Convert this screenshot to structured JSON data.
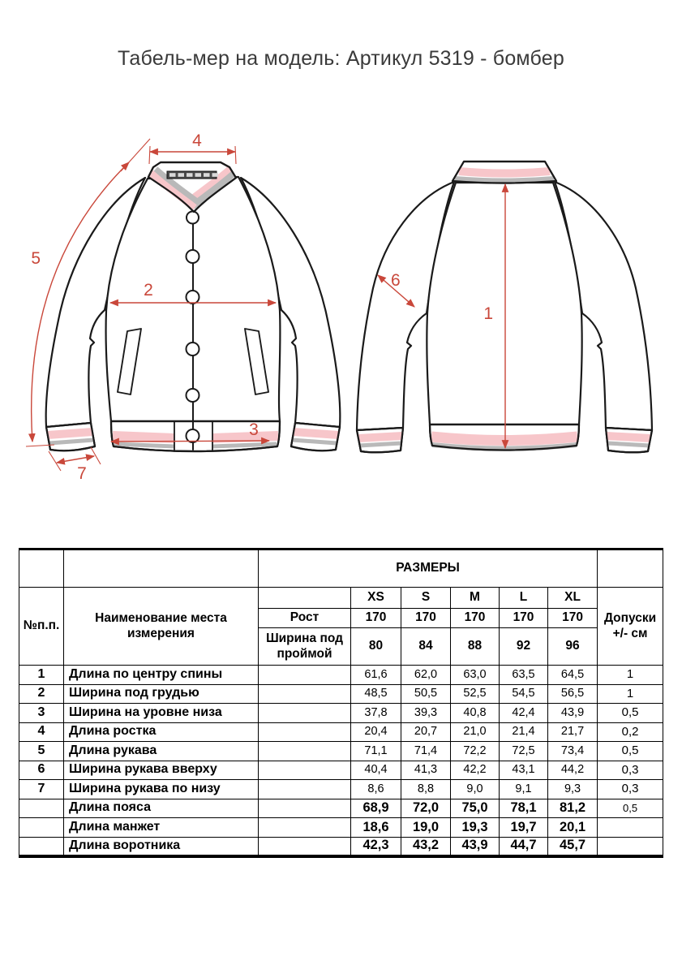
{
  "title": "Табель-мер на модель: Артикул 5319 - бомбер",
  "drawing": {
    "labels": {
      "m1": "1",
      "m2": "2",
      "m3": "3",
      "m4": "4",
      "m5": "5",
      "m6": "6",
      "m7": "7"
    },
    "colors": {
      "accent_red": "#c9473a",
      "rib_pink": "#f7c6ca",
      "rib_gray": "#b9b9b9",
      "outline_black": "#1a1a1a"
    }
  },
  "table": {
    "header": {
      "col_num": "№п.п.",
      "col_name": "Наименование места измерения",
      "sizes_title": "РАЗМЕРЫ",
      "size_labels": [
        "XS",
        "S",
        "M",
        "L",
        "XL"
      ],
      "rost_label": "Рост",
      "rost_values": [
        "170",
        "170",
        "170",
        "170",
        "170"
      ],
      "shirina_label": "Ширина под проймой",
      "shirina_values": [
        "80",
        "84",
        "88",
        "92",
        "96"
      ],
      "tolerance_label": "Допуски +/- см"
    },
    "rows": [
      {
        "num": "1",
        "name": "Длина по центру спины",
        "values": [
          "61,6",
          "62,0",
          "63,0",
          "63,5",
          "64,5"
        ],
        "tolerance": "1",
        "bold": false,
        "tolerance_small": false
      },
      {
        "num": "2",
        "name": "Ширина под грудью",
        "values": [
          "48,5",
          "50,5",
          "52,5",
          "54,5",
          "56,5"
        ],
        "tolerance": "1",
        "bold": false,
        "tolerance_small": false
      },
      {
        "num": "3",
        "name": "Ширина на уровне низа",
        "values": [
          "37,8",
          "39,3",
          "40,8",
          "42,4",
          "43,9"
        ],
        "tolerance": "0,5",
        "bold": false,
        "tolerance_small": false
      },
      {
        "num": "4",
        "name": "Длина ростка",
        "values": [
          "20,4",
          "20,7",
          "21,0",
          "21,4",
          "21,7"
        ],
        "tolerance": "0,2",
        "bold": false,
        "tolerance_small": false
      },
      {
        "num": "5",
        "name": "Длина рукава",
        "values": [
          "71,1",
          "71,4",
          "72,2",
          "72,5",
          "73,4"
        ],
        "tolerance": "0,5",
        "bold": false,
        "tolerance_small": false
      },
      {
        "num": "6",
        "name": "Ширина рукава вверху",
        "values": [
          "40,4",
          "41,3",
          "42,2",
          "43,1",
          "44,2"
        ],
        "tolerance": "0,3",
        "bold": false,
        "tolerance_small": false
      },
      {
        "num": "7",
        "name": "Ширина рукава по низу",
        "values": [
          "8,6",
          "8,8",
          "9,0",
          "9,1",
          "9,3"
        ],
        "tolerance": "0,3",
        "bold": false,
        "tolerance_small": false
      },
      {
        "num": "",
        "name": "Длина пояса",
        "values": [
          "68,9",
          "72,0",
          "75,0",
          "78,1",
          "81,2"
        ],
        "tolerance": "0,5",
        "bold": true,
        "tolerance_small": true
      },
      {
        "num": "",
        "name": "Длина манжет",
        "values": [
          "18,6",
          "19,0",
          "19,3",
          "19,7",
          "20,1"
        ],
        "tolerance": "",
        "bold": true,
        "tolerance_small": false
      },
      {
        "num": "",
        "name": "Длина воротника",
        "values": [
          "42,3",
          "43,2",
          "43,9",
          "44,7",
          "45,7"
        ],
        "tolerance": "",
        "bold": true,
        "tolerance_small": false
      }
    ]
  }
}
